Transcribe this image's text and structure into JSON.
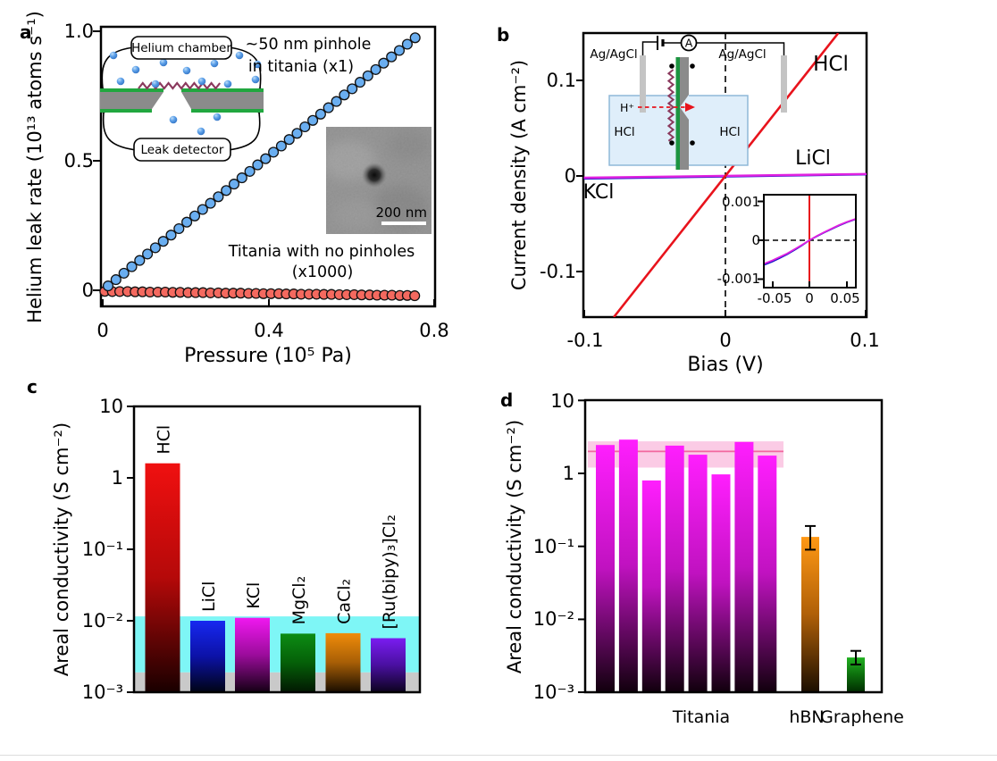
{
  "panels": {
    "a": {
      "label": "a",
      "y_title": "Helium leak rate (10¹³ atoms s⁻¹)",
      "x_title": "Pressure (10⁵ Pa)",
      "y_tick_labels": [
        "0",
        "0.5",
        "1.0"
      ],
      "x_tick_labels": [
        "0",
        "0.4",
        "0.8"
      ],
      "note_blue_line1": "~50 nm pinhole",
      "note_blue_line2": "in titania (x1)",
      "note_red_line1": "Titania with no pinholes",
      "note_red_line2": "(x1000)",
      "schematic": {
        "top_label": "Helium chamber",
        "bottom_label": "Leak detector"
      },
      "tem_scale_label": "200 nm",
      "colors": {
        "blue_note": "#3d8ee0",
        "red_note": "#e8291c"
      }
    },
    "b": {
      "label": "b",
      "y_title": "Current density (A cm⁻²)",
      "x_title": "Bias (V)",
      "y_tick_labels": [
        "-0.1",
        "0",
        "0.1"
      ],
      "x_tick_labels": [
        "-0.1",
        "0",
        "0.1"
      ],
      "series_labels": {
        "hcl": "HCl",
        "licl": "LiCl",
        "kcl": "KCl"
      },
      "schematic": {
        "electrode_left": "Ag/AgCl",
        "electrode_right": "Ag/AgCl",
        "meter": "A",
        "ion": "H⁺",
        "solution_left": "HCl",
        "solution_right": "HCl"
      },
      "inset_axis": {
        "y_tick_labels": [
          "-0.001",
          "0",
          "0.001"
        ],
        "x_tick_labels": [
          "-0.05",
          "0",
          "0.05"
        ]
      }
    },
    "c": {
      "label": "c",
      "y_title": "Areal conductivity (S cm⁻²)",
      "y_tick_labels": [
        "10⁻³",
        "10⁻²",
        "10⁻¹",
        "1",
        "10"
      ]
    },
    "d": {
      "label": "d",
      "y_title": "Areal conductivity (S cm⁻²)",
      "y_tick_labels": [
        "10⁻³",
        "10⁻²",
        "10⁻¹",
        "1",
        "10"
      ],
      "group_labels": [
        "Titania",
        "hBN",
        "Graphene"
      ],
      "group_label_colors": [
        "#ee22ee",
        "#f08c00",
        "#22aa22"
      ]
    }
  },
  "chart_data": [
    {
      "id": "a",
      "type": "scatter",
      "xlabel": "Pressure (10⁵ Pa)",
      "ylabel": "Helium leak rate (10¹³ atoms s⁻¹)",
      "xlim": [
        0,
        0.8
      ],
      "ylim": [
        -0.062,
        1.017
      ],
      "x_ticks": [
        0,
        0.4,
        0.8
      ],
      "y_ticks": [
        0,
        0.5,
        1.0
      ],
      "series": [
        {
          "name": "~50 nm pinhole in titania (x1)",
          "marker_color": "#6aaef0",
          "x": [
            0.013,
            0.032,
            0.051,
            0.07,
            0.089,
            0.108,
            0.127,
            0.146,
            0.165,
            0.184,
            0.203,
            0.222,
            0.241,
            0.26,
            0.279,
            0.298,
            0.317,
            0.336,
            0.355,
            0.374,
            0.393,
            0.412,
            0.431,
            0.45,
            0.469,
            0.488,
            0.507,
            0.526,
            0.545,
            0.564,
            0.583,
            0.602,
            0.621,
            0.64,
            0.659,
            0.678,
            0.697,
            0.716,
            0.735,
            0.754
          ],
          "y": [
            0.017,
            0.041,
            0.066,
            0.091,
            0.115,
            0.14,
            0.164,
            0.189,
            0.213,
            0.238,
            0.263,
            0.287,
            0.312,
            0.336,
            0.361,
            0.385,
            0.41,
            0.434,
            0.459,
            0.484,
            0.508,
            0.533,
            0.557,
            0.582,
            0.606,
            0.631,
            0.656,
            0.68,
            0.705,
            0.729,
            0.754,
            0.778,
            0.803,
            0.828,
            0.852,
            0.877,
            0.901,
            0.926,
            0.95,
            0.975
          ]
        },
        {
          "name": "Titania with no pinholes (x1000)",
          "marker_color": "#f4695f",
          "x": [
            0.005,
            0.023,
            0.041,
            0.06,
            0.078,
            0.096,
            0.114,
            0.133,
            0.151,
            0.169,
            0.187,
            0.206,
            0.224,
            0.242,
            0.26,
            0.279,
            0.297,
            0.315,
            0.333,
            0.352,
            0.37,
            0.388,
            0.406,
            0.425,
            0.443,
            0.461,
            0.479,
            0.498,
            0.516,
            0.534,
            0.552,
            0.571,
            0.589,
            0.607,
            0.625,
            0.644,
            0.662,
            0.68,
            0.698,
            0.717,
            0.735,
            0.753
          ],
          "y": [
            -0.004,
            -0.005,
            -0.005,
            -0.005,
            -0.006,
            -0.006,
            -0.007,
            -0.007,
            -0.007,
            -0.008,
            -0.008,
            -0.009,
            -0.009,
            -0.009,
            -0.01,
            -0.01,
            -0.011,
            -0.011,
            -0.011,
            -0.012,
            -0.012,
            -0.013,
            -0.013,
            -0.013,
            -0.014,
            -0.014,
            -0.015,
            -0.015,
            -0.015,
            -0.016,
            -0.016,
            -0.017,
            -0.017,
            -0.017,
            -0.018,
            -0.018,
            -0.019,
            -0.019,
            -0.019,
            -0.02,
            -0.02,
            -0.021
          ]
        }
      ]
    },
    {
      "id": "b",
      "type": "line",
      "xlabel": "Bias (V)",
      "ylabel": "Current density (A cm⁻²)",
      "xlim": [
        -0.1,
        0.1
      ],
      "ylim": [
        -0.148,
        0.149
      ],
      "x_ticks": [
        -0.1,
        0,
        0.1
      ],
      "y_ticks": [
        -0.1,
        0,
        0.1
      ],
      "series": [
        {
          "name": "LiCl",
          "color": "#1a17c8",
          "width": 2.2,
          "x": [
            -0.1,
            0.1
          ],
          "y": [
            -0.0028,
            0.0016
          ]
        },
        {
          "name": "KCl",
          "color": "#e020e0",
          "width": 2.4,
          "x": [
            -0.1,
            0.1
          ],
          "y": [
            -0.0019,
            0.0021
          ]
        },
        {
          "name": "HCl",
          "color": "#e8131c",
          "width": 2.6,
          "x": [
            -0.0788,
            0.0797
          ],
          "y": [
            -0.1477,
            0.1494
          ]
        }
      ],
      "inset": {
        "xlim": [
          -0.062,
          0.062
        ],
        "ylim": [
          -0.0012,
          0.0012
        ],
        "x_ticks": [
          -0.05,
          0,
          0.05
        ],
        "y_ticks": [
          -0.001,
          0,
          0.001
        ],
        "series": [
          {
            "name": "HCl",
            "color": "#e8131c",
            "width": 2.0,
            "x": [
              0,
              0
            ],
            "y": [
              -0.0012,
              0.0012
            ]
          },
          {
            "name": "LiCl",
            "color": "#1a17c8",
            "width": 1.8,
            "x": [
              -0.062,
              -0.05,
              -0.04,
              -0.03,
              -0.02,
              -0.01,
              0,
              0.01,
              0.02,
              0.03,
              0.04,
              0.05,
              0.062
            ],
            "y": [
              -0.00064,
              -0.00055,
              -0.00046,
              -0.00036,
              -0.00025,
              -0.00013,
              0,
              0.0001,
              0.0002,
              0.00029,
              0.00038,
              0.00046,
              0.00054
            ]
          },
          {
            "name": "KCl",
            "color": "#e020e0",
            "width": 1.8,
            "x": [
              -0.062,
              -0.05,
              -0.04,
              -0.03,
              -0.02,
              -0.01,
              0,
              0.01,
              0.02,
              0.03,
              0.04,
              0.05,
              0.062
            ],
            "y": [
              -0.00061,
              -0.00052,
              -0.00043,
              -0.00034,
              -0.00023,
              -0.00012,
              0,
              0.00011,
              0.00021,
              0.0003,
              0.00039,
              0.00047,
              0.00055
            ]
          }
        ]
      }
    },
    {
      "id": "c",
      "type": "bar",
      "y_scale": "log",
      "ylabel": "Areal conductivity (S cm⁻²)",
      "ylim": [
        0.001,
        10
      ],
      "y_ticks": [
        0.001,
        0.01,
        0.1,
        1,
        10
      ],
      "categories": [
        "HCl",
        "LiCl",
        "KCl",
        "MgCl₂",
        "CaCl₂",
        "[Ru(bipy)₃]Cl₂"
      ],
      "values": [
        1.6,
        0.01,
        0.011,
        0.0066,
        0.0067,
        0.0057
      ],
      "bar_gradients": [
        [
          "#f01010",
          "#b50909",
          "#1a0000"
        ],
        [
          "#1728f0",
          "#0c12a8",
          "#000418"
        ],
        [
          "#f018f0",
          "#9c0c9c",
          "#170017"
        ],
        [
          "#0c8c14",
          "#056008",
          "#021a02"
        ],
        [
          "#f08c0a",
          "#a85f06",
          "#1d0f00"
        ],
        [
          "#7a1cf0",
          "#4a10a2",
          "#0e0322"
        ]
      ],
      "bands": [
        {
          "color": "#c9c9c9",
          "from": 0.001,
          "to": 0.0019
        },
        {
          "color": "#7ef6f6",
          "from": 0.0019,
          "to": 0.0115
        }
      ]
    },
    {
      "id": "d",
      "type": "bar",
      "y_scale": "log",
      "ylabel": "Areal conductivity (S cm⁻²)",
      "ylim": [
        0.001,
        10
      ],
      "y_ticks": [
        0.001,
        0.01,
        0.1,
        1,
        10
      ],
      "groups": [
        {
          "name": "Titania",
          "label_color": "#ee22ee",
          "gradient": [
            "#ff1efe",
            "#c012c0",
            "#12000e"
          ],
          "values": [
            2.45,
            2.9,
            0.8,
            2.4,
            1.8,
            0.97,
            2.7,
            1.75
          ]
        },
        {
          "name": "hBN",
          "label_color": "#f08c00",
          "gradient": [
            "#ff9814",
            "#b06008",
            "#1d0f00"
          ],
          "values": [
            0.135
          ],
          "error_ranges": [
            [
              0.09,
              0.19
            ]
          ]
        },
        {
          "name": "Graphene",
          "label_color": "#22aa22",
          "gradient": [
            "#21b021",
            "#0d700d",
            "#013001"
          ],
          "values": [
            0.003
          ],
          "error_ranges": [
            [
              0.0024,
              0.0037
            ]
          ]
        }
      ],
      "reference_band": {
        "color": "#fbc5e2",
        "from": 1.2,
        "to": 2.75,
        "line_at": 2.0,
        "line_color": "#f2679e"
      }
    }
  ]
}
